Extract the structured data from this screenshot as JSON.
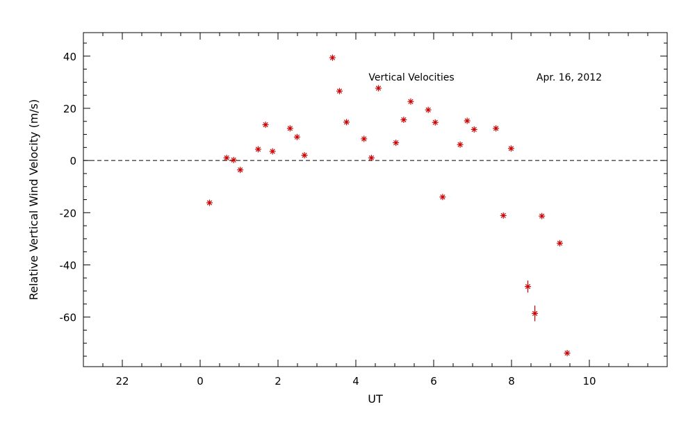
{
  "chart_data": {
    "type": "scatter",
    "xlabel": "UT",
    "ylabel": "Relative Vertical Wind Velocity (m/s)",
    "title": "Vertical Velocities",
    "date_label": "Apr. 16, 2012",
    "xlim": [
      -3.0,
      12.0
    ],
    "ylim": [
      -79,
      49
    ],
    "x_major_ticks": [
      -2,
      0,
      2,
      4,
      6,
      8,
      10
    ],
    "x_tick_labels": [
      "22",
      "0",
      "2",
      "4",
      "6",
      "8",
      "10"
    ],
    "x_minor_step": 0.5,
    "y_major_ticks": [
      -60,
      -40,
      -20,
      0,
      20,
      40
    ],
    "y_tick_labels": [
      "-60",
      "-40",
      "-20",
      "0",
      "20",
      "40"
    ],
    "y_minor_step": 5,
    "reference_line": {
      "y": 0,
      "style": "dashed",
      "color": "#000000"
    },
    "marker": "asterisk",
    "marker_color": "#cc0000",
    "grid": false,
    "points": [
      {
        "x": 0.24,
        "y": -16.2,
        "err": 0
      },
      {
        "x": 0.68,
        "y": 1.0,
        "err": 0
      },
      {
        "x": 0.86,
        "y": 0.2,
        "err": 0
      },
      {
        "x": 1.03,
        "y": -3.6,
        "err": 0
      },
      {
        "x": 1.49,
        "y": 4.3,
        "err": 0
      },
      {
        "x": 1.68,
        "y": 13.7,
        "err": 0
      },
      {
        "x": 1.86,
        "y": 3.5,
        "err": 0
      },
      {
        "x": 2.31,
        "y": 12.3,
        "err": 0
      },
      {
        "x": 2.49,
        "y": 9.0,
        "err": 0
      },
      {
        "x": 2.68,
        "y": 2.0,
        "err": 0
      },
      {
        "x": 3.4,
        "y": 39.4,
        "err": 0
      },
      {
        "x": 3.58,
        "y": 26.6,
        "err": 0
      },
      {
        "x": 3.76,
        "y": 14.7,
        "err": 0
      },
      {
        "x": 4.21,
        "y": 8.3,
        "err": 0
      },
      {
        "x": 4.4,
        "y": 1.0,
        "err": 0
      },
      {
        "x": 4.58,
        "y": 27.7,
        "err": 0
      },
      {
        "x": 5.03,
        "y": 6.8,
        "err": 0
      },
      {
        "x": 5.23,
        "y": 15.6,
        "err": 0
      },
      {
        "x": 5.41,
        "y": 22.6,
        "err": 0
      },
      {
        "x": 5.86,
        "y": 19.4,
        "err": 0
      },
      {
        "x": 6.04,
        "y": 14.6,
        "err": 0
      },
      {
        "x": 6.23,
        "y": -14.0,
        "err": 0
      },
      {
        "x": 6.68,
        "y": 6.1,
        "err": 0
      },
      {
        "x": 6.86,
        "y": 15.2,
        "err": 0
      },
      {
        "x": 7.04,
        "y": 11.9,
        "err": 0
      },
      {
        "x": 7.6,
        "y": 12.3,
        "err": 0
      },
      {
        "x": 7.79,
        "y": -21.1,
        "err": 0
      },
      {
        "x": 7.99,
        "y": 4.6,
        "err": 0
      },
      {
        "x": 8.42,
        "y": -48.3,
        "err": 2.3
      },
      {
        "x": 8.6,
        "y": -58.6,
        "err": 3.0
      },
      {
        "x": 8.78,
        "y": -21.3,
        "err": 0
      },
      {
        "x": 9.24,
        "y": -31.7,
        "err": 0
      },
      {
        "x": 9.43,
        "y": -73.8,
        "err": 0
      }
    ]
  }
}
